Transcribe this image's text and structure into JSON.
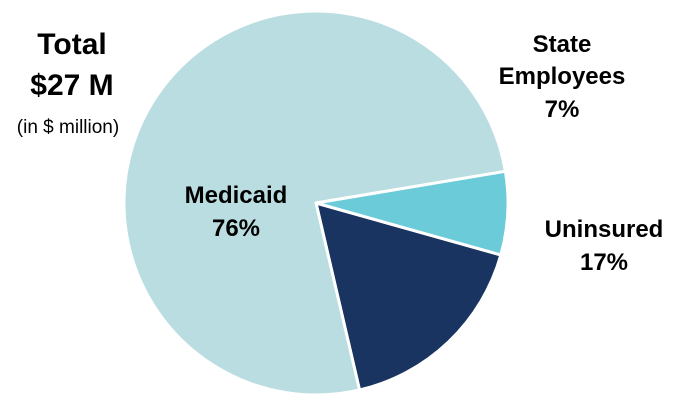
{
  "chart_data": {
    "type": "pie",
    "total_label_line1": "Total",
    "total_label_line2": "$27 M",
    "total_note": "(in $ million)",
    "slices": [
      {
        "name": "Medicaid",
        "value": 76,
        "value_label": "76%",
        "color": "#b9dde0"
      },
      {
        "name": "State Employees",
        "name_lines": [
          "State",
          "Employees"
        ],
        "value": 7,
        "value_label": "7%",
        "color": "#6ccbd8"
      },
      {
        "name": "Uninsured",
        "value": 17,
        "value_label": "17%",
        "color": "#1a3461"
      }
    ],
    "slice_border_color": "#ffffff",
    "legend": "none"
  }
}
